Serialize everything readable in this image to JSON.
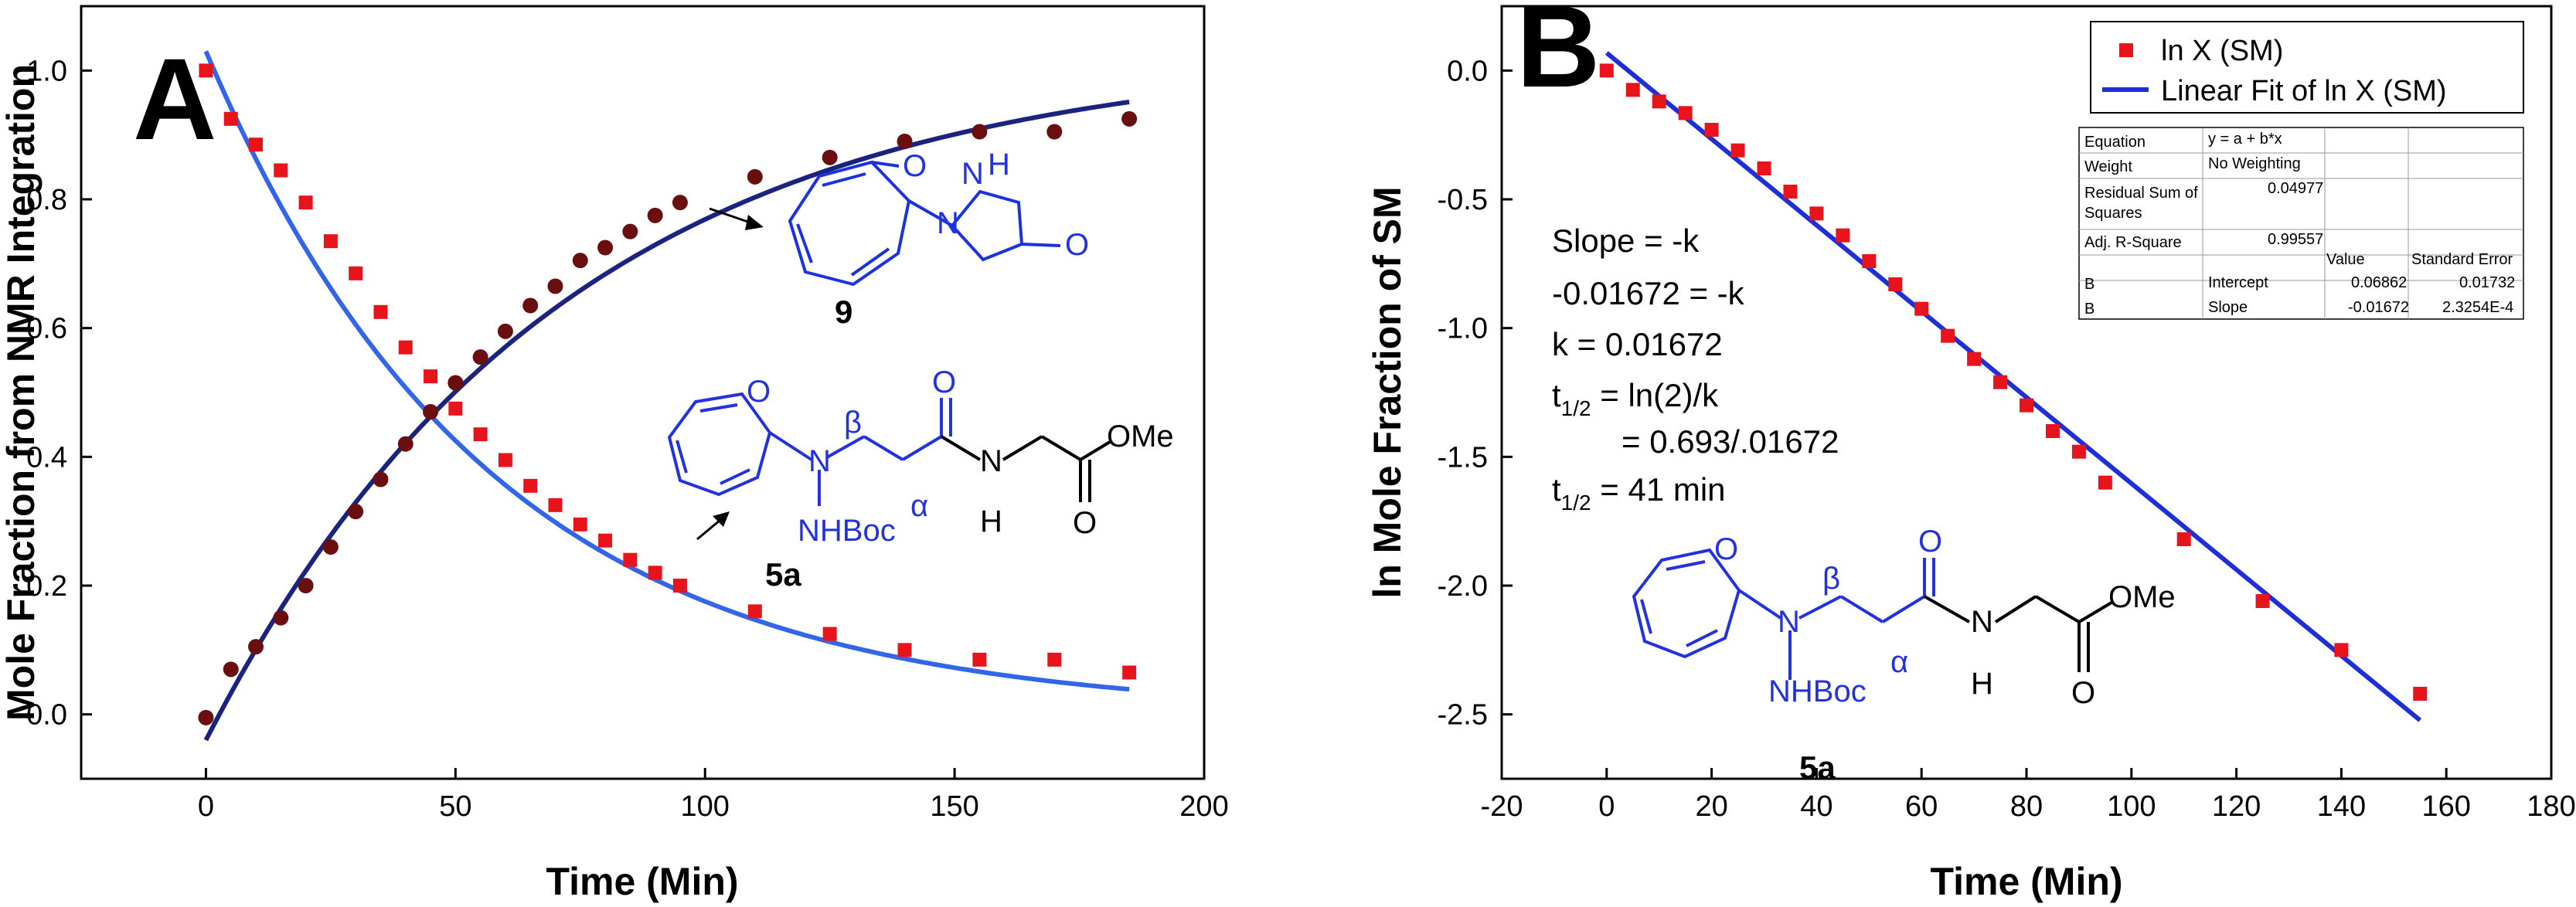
{
  "chart_data": [
    {
      "panel": "A",
      "type": "scatter",
      "xlabel": "Time (Min)",
      "ylabel": "Mole Fraction from NMR Integration",
      "xlim": [
        -25,
        200
      ],
      "ylim": [
        -0.1,
        1.1
      ],
      "xticks": [
        "0",
        "50",
        "100",
        "150",
        "200"
      ],
      "yticks": [
        "0.0",
        "0.2",
        "0.4",
        "0.6",
        "0.8",
        "1.0"
      ],
      "series": [
        {
          "name": "",
          "color": "#e8141c",
          "marker": "square",
          "x": [
            0,
            5,
            10,
            15,
            20,
            25,
            30,
            35,
            40,
            45,
            50,
            55,
            60,
            65,
            70,
            75,
            80,
            85,
            90,
            95,
            110,
            125,
            140,
            155,
            170,
            185
          ],
          "y": [
            1.0,
            0.925,
            0.885,
            0.845,
            0.795,
            0.735,
            0.685,
            0.625,
            0.57,
            0.525,
            0.475,
            0.435,
            0.395,
            0.355,
            0.325,
            0.295,
            0.27,
            0.24,
            0.22,
            0.2,
            0.16,
            0.125,
            0.1,
            0.085,
            0.085,
            0.065
          ]
        },
        {
          "name": "",
          "color": "#6b0e10",
          "marker": "circle",
          "x": [
            0,
            5,
            10,
            15,
            20,
            25,
            30,
            35,
            40,
            45,
            50,
            55,
            60,
            65,
            70,
            75,
            80,
            85,
            90,
            95,
            110,
            125,
            140,
            155,
            170,
            185
          ],
          "y": [
            -0.005,
            0.07,
            0.105,
            0.15,
            0.2,
            0.26,
            0.315,
            0.365,
            0.42,
            0.47,
            0.515,
            0.555,
            0.595,
            0.635,
            0.665,
            0.705,
            0.725,
            0.75,
            0.775,
            0.795,
            0.835,
            0.865,
            0.89,
            0.905,
            0.905,
            0.925
          ]
        }
      ],
      "fits": [
        {
          "color": "#3366e6",
          "curve": "exp-decay",
          "x": [
            0,
            185
          ],
          "y0": 1.03,
          "k": 0.0177,
          "offset": -0.0
        },
        {
          "color": "#1a237e",
          "curve": "exp-rise",
          "x": [
            0,
            185
          ],
          "start": -0.04,
          "plateau": 1.03,
          "k": 0.0141
        }
      ],
      "annotations": {
        "compound_9_label": "9",
        "compound_5a_label": "5a",
        "beta": "β",
        "alpha": "α",
        "nhboc": "NHBoc",
        "n_atom": "N",
        "h_atom": "H",
        "o_atom": "O",
        "ome": "OMe"
      }
    },
    {
      "panel": "B",
      "type": "scatter",
      "xlabel": "Time (Min)",
      "ylabel": "ln Mole Fraction of SM",
      "xlim": [
        -20,
        180
      ],
      "ylim": [
        -2.75,
        0.25
      ],
      "xticks": [
        "-20",
        "0",
        "20",
        "40",
        "60",
        "80",
        "100",
        "120",
        "140",
        "160",
        "180"
      ],
      "yticks": [
        "-2.5",
        "-2.0",
        "-1.5",
        "-1.0",
        "-0.5",
        "0.0"
      ],
      "series": [
        {
          "name": "ln X (SM)",
          "color": "#e8141c",
          "marker": "square",
          "x": [
            0,
            5,
            10,
            15,
            20,
            25,
            30,
            35,
            40,
            45,
            50,
            55,
            60,
            65,
            70,
            75,
            80,
            85,
            90,
            95,
            110,
            125,
            140,
            155
          ],
          "y": [
            0.0,
            -0.075,
            -0.12,
            -0.165,
            -0.23,
            -0.31,
            -0.38,
            -0.47,
            -0.555,
            -0.64,
            -0.74,
            -0.83,
            -0.925,
            -1.03,
            -1.12,
            -1.21,
            -1.3,
            -1.4,
            -1.48,
            -1.6,
            -1.82,
            -2.06,
            -2.25,
            -2.42
          ]
        }
      ],
      "fit": {
        "name": "Linear Fit of ln X (SM)",
        "color": "#1f2fd6",
        "intercept": 0.06862,
        "slope": -0.01672,
        "x": [
          0,
          155
        ]
      },
      "legend": {
        "placement": "top-right",
        "entries": [
          "ln X (SM)",
          "Linear Fit of ln X (SM)"
        ]
      },
      "fit_table": {
        "equation_label": "Equation",
        "equation_value": "y = a + b*x",
        "weight_label": "Weight",
        "weight_value": "No Weighting",
        "rss_label_1": "Residual Sum of",
        "rss_label_2": "Squares",
        "rss_value": "0.04977",
        "r2_label": "Adj. R-Square",
        "r2_value": "0.99557",
        "col_value": "Value",
        "col_error": "Standard Error",
        "row1_name": "B",
        "row1_param": "Intercept",
        "row1_value": "0.06862",
        "row1_error": "0.01732",
        "row2_name": "B",
        "row2_param": "Slope",
        "row2_value": "-0.01672",
        "row2_error": "2.3254E-4"
      },
      "text_annotations": {
        "line1": "Slope = -k",
        "line2": "-0.01672 = -k",
        "line3": "k = 0.01672",
        "line4_t": "t",
        "line4_sub": "1/2",
        "line4_rest": " = ln(2)/k",
        "line5": "= 0.693/.01672",
        "line6_t": "t",
        "line6_sub": "1/2",
        "line6_rest": " = 41 min"
      },
      "annotations": {
        "compound_5a_label": "5a",
        "beta": "β",
        "alpha": "α",
        "nhboc": "NHBoc",
        "n_atom": "N",
        "h_atom": "H",
        "o_atom": "O",
        "ome": "OMe"
      }
    }
  ]
}
